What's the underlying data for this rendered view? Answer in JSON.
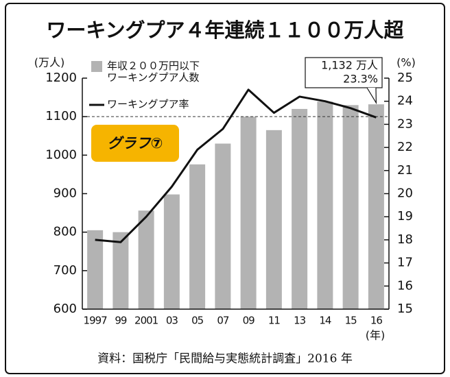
{
  "chart_data": {
    "type": "bar_line",
    "title": "ワーキングプア４年連続１１００万人超",
    "y_label": "(万人)",
    "y2_label": "(%)",
    "x_label": "(年)",
    "badge": "グラフ⑦",
    "source": "資料：国税庁「民間給与実態統計調査」2016 年",
    "categories": [
      "1997",
      "99",
      "2001",
      "03",
      "05",
      "07",
      "09",
      "11",
      "13",
      "14",
      "15",
      "16"
    ],
    "series": [
      {
        "name": "年収２００万円以下\nワーキングプア人数",
        "type": "bar",
        "color": "#b3b3b3",
        "values": [
          805,
          800,
          856,
          898,
          976,
          1030,
          1100,
          1065,
          1120,
          1139,
          1130,
          1132
        ],
        "value_labels": [
          null,
          null,
          null,
          null,
          null,
          null,
          null,
          null,
          null,
          null,
          null,
          "1,132 万人"
        ]
      },
      {
        "name": "ワーキングプア率",
        "type": "line",
        "axis": "y2",
        "color": "#111111",
        "values": [
          18.0,
          17.9,
          19.0,
          20.3,
          21.9,
          22.8,
          24.5,
          23.5,
          24.2,
          24.0,
          23.7,
          23.3
        ],
        "value_labels": [
          null,
          null,
          null,
          null,
          null,
          null,
          null,
          null,
          null,
          null,
          null,
          "23.3%"
        ]
      }
    ],
    "hline": 1100,
    "ylim": [
      600,
      1200
    ],
    "yticks": [
      600,
      700,
      800,
      900,
      1000,
      1100,
      1200
    ],
    "y2lim": [
      15,
      25
    ],
    "y2ticks": [
      15,
      16,
      17,
      18,
      19,
      20,
      21,
      22,
      23,
      24,
      25
    ]
  }
}
